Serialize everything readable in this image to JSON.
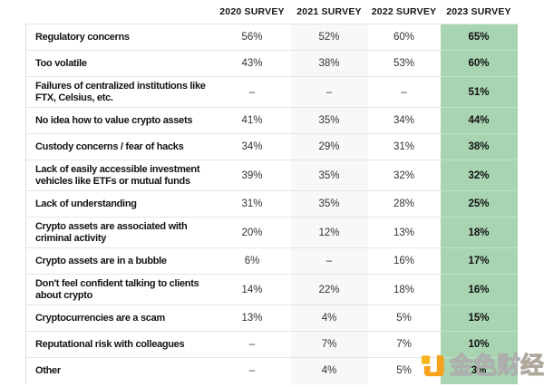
{
  "table": {
    "columns": [
      "2020 SURVEY",
      "2021 SURVEY",
      "2022 SURVEY",
      "2023 SURVEY"
    ],
    "highlighted_column": "2023 SURVEY",
    "missing_marker": "–",
    "rows": [
      {
        "label": "Regulatory concerns",
        "values": [
          "56%",
          "52%",
          "60%",
          "65%"
        ]
      },
      {
        "label": "Too volatile",
        "values": [
          "43%",
          "38%",
          "53%",
          "60%"
        ]
      },
      {
        "label": "Failures of centralized institutions like\nFTX, Celsius, etc.",
        "values": [
          "–",
          "–",
          "–",
          "51%"
        ]
      },
      {
        "label": "No idea how to value crypto assets",
        "values": [
          "41%",
          "35%",
          "34%",
          "44%"
        ]
      },
      {
        "label": "Custody concerns / fear of hacks",
        "values": [
          "34%",
          "29%",
          "31%",
          "38%"
        ]
      },
      {
        "label": "Lack of easily accessible investment\nvehicles like ETFs or mutual funds",
        "values": [
          "39%",
          "35%",
          "32%",
          "32%"
        ]
      },
      {
        "label": "Lack of understanding",
        "values": [
          "31%",
          "35%",
          "28%",
          "25%"
        ]
      },
      {
        "label": "Crypto assets are associated with\ncriminal activity",
        "values": [
          "20%",
          "12%",
          "13%",
          "18%"
        ]
      },
      {
        "label": "Crypto assets are in a bubble",
        "values": [
          "6%",
          "–",
          "16%",
          "17%"
        ]
      },
      {
        "label": "Don't feel confident talking to clients\nabout crypto",
        "values": [
          "14%",
          "22%",
          "18%",
          "16%"
        ]
      },
      {
        "label": "Cryptocurrencies are a scam",
        "values": [
          "13%",
          "4%",
          "5%",
          "15%"
        ]
      },
      {
        "label": "Reputational risk with colleagues",
        "values": [
          "–",
          "7%",
          "7%",
          "10%"
        ]
      },
      {
        "label": "Other",
        "values": [
          "–",
          "4%",
          "5%",
          "3%"
        ]
      }
    ]
  },
  "watermark": {
    "text_main": "金色财",
    "text_last": "经",
    "logo": "jinse-finance-logo",
    "logo_color": "#f6a21c"
  },
  "colors": {
    "highlight_green": "#a8d4b2",
    "highlight_green_divider": "#c2e0ca",
    "column_2021_bg": "#f7f8f9",
    "row_divider": "#e4e6e6",
    "left_border": "#dcdee0",
    "watermark_orange": "#f6a21c"
  },
  "chart_data": {
    "type": "table",
    "title": "",
    "columns": [
      "2020 SURVEY",
      "2021 SURVEY",
      "2022 SURVEY",
      "2023 SURVEY"
    ],
    "categories": [
      "Regulatory concerns",
      "Too volatile",
      "Failures of centralized institutions like FTX, Celsius, etc.",
      "No idea how to value crypto assets",
      "Custody concerns / fear of hacks",
      "Lack of easily accessible investment vehicles like ETFs or mutual funds",
      "Lack of understanding",
      "Crypto assets are associated with criminal activity",
      "Crypto assets are in a bubble",
      "Don't feel confident talking to clients about crypto",
      "Cryptocurrencies are a scam",
      "Reputational risk with colleagues",
      "Other"
    ],
    "series": [
      {
        "name": "2020 SURVEY",
        "values": [
          56,
          43,
          null,
          41,
          34,
          39,
          31,
          20,
          6,
          14,
          13,
          null,
          null
        ]
      },
      {
        "name": "2021 SURVEY",
        "values": [
          52,
          38,
          null,
          35,
          29,
          35,
          35,
          12,
          null,
          22,
          4,
          7,
          4
        ]
      },
      {
        "name": "2022 SURVEY",
        "values": [
          60,
          53,
          null,
          34,
          31,
          32,
          28,
          13,
          16,
          18,
          5,
          7,
          5
        ]
      },
      {
        "name": "2023 SURVEY",
        "values": [
          65,
          60,
          51,
          44,
          38,
          32,
          25,
          18,
          17,
          16,
          15,
          10,
          3
        ]
      }
    ],
    "units": "%",
    "missing_marker": "–",
    "layout_hints": "2023 SURVEY column highlighted with green background; 2021 SURVEY column has faint gray background; null values shown as en dash"
  }
}
